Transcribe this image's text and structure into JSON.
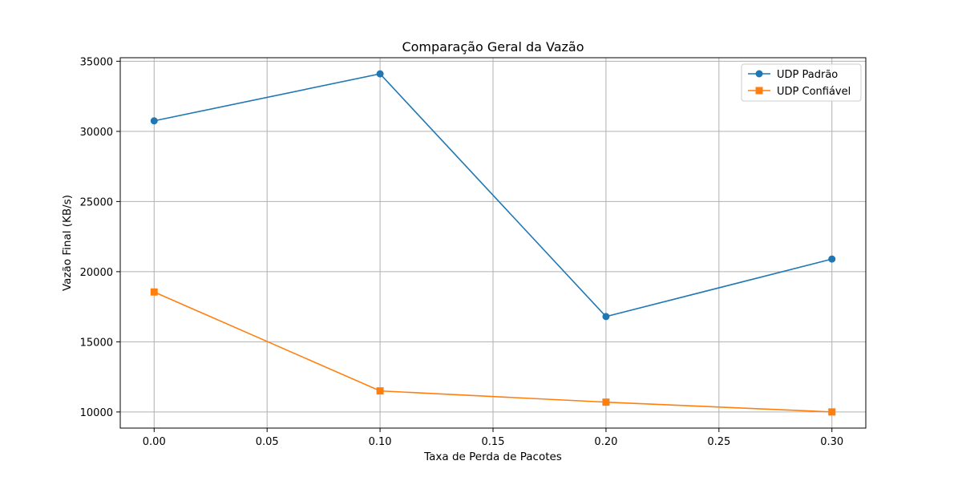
{
  "chart_data": {
    "type": "line",
    "title": "Comparação Geral da Vazão",
    "xlabel": "Taxa de Perda de Pacotes",
    "ylabel": "Vazão Final (KB/s)",
    "x": [
      0.0,
      0.1,
      0.2,
      0.3
    ],
    "xlim": [
      -0.015,
      0.315
    ],
    "ylim": [
      8850,
      35250
    ],
    "xticks": [
      0.0,
      0.05,
      0.1,
      0.15,
      0.2,
      0.25,
      0.3
    ],
    "xtick_labels": [
      "0.00",
      "0.05",
      "0.10",
      "0.15",
      "0.20",
      "0.25",
      "0.30"
    ],
    "yticks": [
      10000,
      15000,
      20000,
      25000,
      30000,
      35000
    ],
    "ytick_labels": [
      "10000",
      "15000",
      "20000",
      "25000",
      "30000",
      "35000"
    ],
    "grid": true,
    "legend_position": "top-right",
    "series": [
      {
        "name": "UDP Padrão",
        "values": [
          30750,
          34100,
          16800,
          20900
        ],
        "color": "#1f77b4",
        "marker": "circle"
      },
      {
        "name": "UDP Confiável",
        "values": [
          18550,
          11500,
          10700,
          10000
        ],
        "color": "#ff7f0e",
        "marker": "square"
      }
    ]
  }
}
